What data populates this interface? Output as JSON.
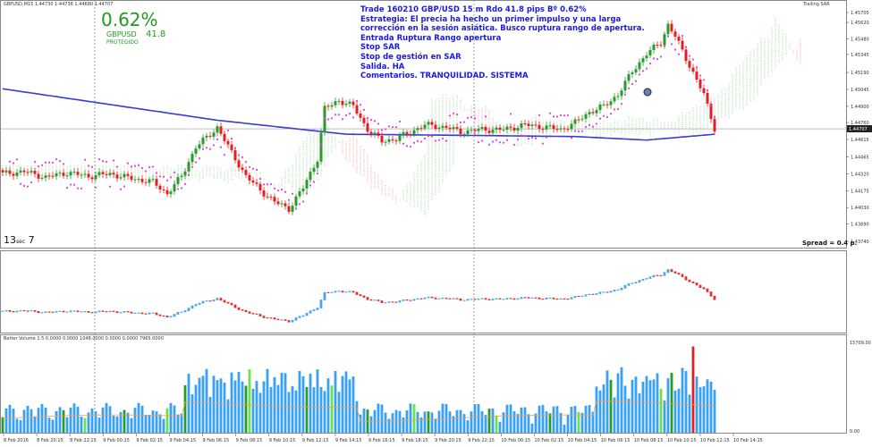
{
  "window": {
    "symbol_header": "GBPUSD,M15  1.44730 1.44736 1.44680 1.44707",
    "indicator_label": "Trailing SAR",
    "volume_header": "Better Volume 1.5 0.0000 0.0000 1048.0000 0.0000 0.0000 7965.0000",
    "spread_label": "Spread = 0.4 p.",
    "timer_main": "13",
    "timer_unit": "sec",
    "timer_sec": "7"
  },
  "trade_box": {
    "percent": "0.62%",
    "pair": "GBPUSD",
    "pips": "41.8",
    "status": "PROTEGIDO"
  },
  "annotation": {
    "lines": [
      "Trade 160210 GBP/USD 15 m Rdo 41.8 pips Bº 0.62%",
      "Estrategia: El precia ha hecho un primer impulso y una larga corrección en la sesión asiática. Busco ruptura rango de apertura.",
      "Entrada Ruptura Rango apertura",
      "Stop SAR",
      "Stop de gestión en  SAR",
      "Salida.  HA",
      "Comentarios. TRANQUILIDAD. SISTEMA"
    ]
  },
  "colors": {
    "bull": "#2a9a2a",
    "bear": "#e02020",
    "sar": "#e040e0",
    "ma": "#3a3ad8",
    "cloud_up": "#4caf50",
    "cloud_down": "#e05050",
    "ha_up": "#4aa3f0",
    "ha_down": "#e03030",
    "vol_blue": "#3aa0f0",
    "vol_green": "#2a9a2a",
    "vol_lime": "#6ee04a",
    "vol_red": "#e02020",
    "vol_ma": "#f0a040"
  },
  "chart_data": {
    "type": "candlestick",
    "price_ticks": [
      "1.45705",
      "1.45620",
      "1.45480",
      "1.45345",
      "1.45190",
      "1.45045",
      "1.44900",
      "1.44760",
      "1.44615",
      "1.44465",
      "1.44320",
      "1.44175",
      "1.44030",
      "1.43890",
      "1.43740"
    ],
    "current_price": "1.44707",
    "volume_top_tick": "15709.00",
    "volume_bottom_tick": "0.00",
    "time_labels": [
      "8 Feb 2016",
      "8 Feb 20:15",
      "8 Feb 22:15",
      "9 Feb 00:15",
      "9 Feb 02:15",
      "9 Feb 04:15",
      "9 Feb 06:15",
      "9 Feb 08:15",
      "9 Feb 10:15",
      "9 Feb 12:15",
      "9 Feb 14:15",
      "9 Feb 16:15",
      "9 Feb 18:15",
      "9 Feb 20:15",
      "9 Feb 22:15",
      "10 Feb 00:15",
      "10 Feb 02:15",
      "10 Feb 04:15",
      "10 Feb 06:15",
      "10 Feb 08:15",
      "10 Feb 10:15",
      "10 Feb 12:15",
      "10 Feb 14:15"
    ],
    "close_anchors": [
      [
        0,
        1.4432
      ],
      [
        6,
        1.4434
      ],
      [
        12,
        1.4429
      ],
      [
        18,
        1.4433
      ],
      [
        24,
        1.443
      ],
      [
        30,
        1.4432
      ],
      [
        36,
        1.4428
      ],
      [
        42,
        1.4425
      ],
      [
        46,
        1.4415
      ],
      [
        50,
        1.443
      ],
      [
        54,
        1.4455
      ],
      [
        58,
        1.4466
      ],
      [
        60,
        1.4472
      ],
      [
        64,
        1.445
      ],
      [
        68,
        1.443
      ],
      [
        72,
        1.4418
      ],
      [
        76,
        1.4408
      ],
      [
        80,
        1.4402
      ],
      [
        84,
        1.442
      ],
      [
        88,
        1.4445
      ],
      [
        90,
        1.4488
      ],
      [
        94,
        1.4495
      ],
      [
        98,
        1.449
      ],
      [
        102,
        1.447
      ],
      [
        106,
        1.446
      ],
      [
        110,
        1.4462
      ],
      [
        114,
        1.4468
      ],
      [
        118,
        1.4474
      ],
      [
        124,
        1.4472
      ],
      [
        128,
        1.4468
      ],
      [
        134,
        1.447
      ],
      [
        140,
        1.447
      ],
      [
        146,
        1.4474
      ],
      [
        152,
        1.4472
      ],
      [
        156,
        1.447
      ],
      [
        160,
        1.4476
      ],
      [
        164,
        1.4485
      ],
      [
        168,
        1.449
      ],
      [
        172,
        1.45
      ],
      [
        176,
        1.452
      ],
      [
        180,
        1.4535
      ],
      [
        184,
        1.4545
      ],
      [
        186,
        1.456
      ],
      [
        188,
        1.455
      ],
      [
        192,
        1.4525
      ],
      [
        196,
        1.45
      ],
      [
        199,
        1.4471
      ]
    ]
  }
}
